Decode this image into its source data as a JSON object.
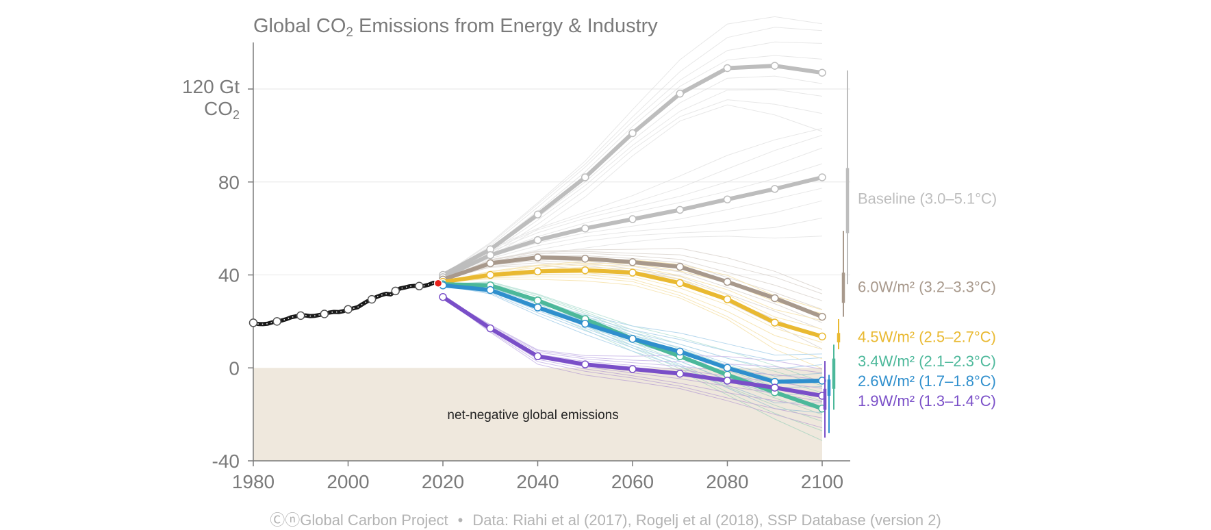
{
  "title": {
    "prefix": "Global CO",
    "subscript": "2",
    "suffix": " Emissions from Energy & Industry"
  },
  "y_unit": {
    "line1": "120 Gt",
    "line2_prefix": "CO",
    "line2_sub": "2"
  },
  "shaded_region_label": "net-negative global emissions",
  "footer": {
    "credit": "ⒸⓝGlobal Carbon Project",
    "separator": "•",
    "source": "Data: Riahi et al (2017), Rogelj et al (2018), SSP Database (version 2)"
  },
  "colors": {
    "baseline": "#bdbdbd",
    "ssp60": "#a8998c",
    "ssp45": "#e9b931",
    "ssp34": "#4cb89a",
    "ssp26": "#2f8fcd",
    "ssp19": "#7a4fc8",
    "historical": "#1a1a1a",
    "current_point": "#e8201a",
    "negative_fill": "#efe8dd",
    "axis": "#7a7a7a",
    "grid": "#e6e6e6"
  },
  "chart_data": {
    "type": "line",
    "xlabel": "",
    "ylabel": "",
    "xlim": [
      1980,
      2106
    ],
    "ylim": [
      -40,
      140
    ],
    "xticks": [
      1980,
      2000,
      2020,
      2040,
      2060,
      2080,
      2100
    ],
    "yticks": [
      -40,
      0,
      40,
      80
    ],
    "ytick_labels": [
      "-40",
      "0",
      "40",
      "80"
    ],
    "grid": "horizontal",
    "shaded_region": {
      "from": -40,
      "to": 0,
      "label": "net-negative global emissions"
    },
    "historical": {
      "x": [
        1980,
        1981,
        1982,
        1983,
        1984,
        1985,
        1986,
        1987,
        1988,
        1989,
        1990,
        1991,
        1992,
        1993,
        1994,
        1995,
        1996,
        1997,
        1998,
        1999,
        2000,
        2001,
        2002,
        2003,
        2004,
        2005,
        2006,
        2007,
        2008,
        2009,
        2010,
        2011,
        2012,
        2013,
        2014,
        2015,
        2016,
        2017,
        2018,
        2019
      ],
      "y": [
        19.4,
        18.9,
        18.8,
        19.0,
        19.6,
        20.0,
        20.4,
        21.0,
        21.8,
        22.2,
        22.5,
        22.6,
        22.3,
        22.4,
        22.8,
        23.2,
        23.8,
        24.1,
        24.0,
        24.4,
        25.2,
        25.6,
        26.1,
        27.4,
        28.6,
        29.5,
        30.5,
        31.3,
        31.9,
        31.6,
        33.1,
        34.2,
        34.6,
        35.1,
        35.3,
        35.2,
        35.3,
        35.8,
        36.6,
        36.4
      ],
      "markers_x": [
        1980,
        1985,
        1990,
        1995,
        2000,
        2005,
        2010,
        2015
      ],
      "current_point": {
        "x": 2019,
        "y": 36.4
      }
    },
    "series": [
      {
        "key": "baseline_high",
        "label": "",
        "color": "baseline",
        "x": [
          2020,
          2030,
          2040,
          2050,
          2060,
          2070,
          2080,
          2090,
          2100
        ],
        "y": [
          40,
          51,
          66,
          82,
          101,
          118,
          129,
          130,
          127
        ]
      },
      {
        "key": "baseline_low",
        "label": "Baseline (3.0–5.1°C)",
        "color": "baseline",
        "x": [
          2020,
          2030,
          2040,
          2050,
          2060,
          2070,
          2080,
          2090,
          2100
        ],
        "y": [
          39,
          48.5,
          55,
          60,
          64,
          68,
          72.5,
          77,
          82
        ]
      },
      {
        "key": "ssp60",
        "label": "6.0W/m² (3.2–3.3°C)",
        "color": "ssp60",
        "x": [
          2020,
          2030,
          2040,
          2050,
          2060,
          2070,
          2080,
          2090,
          2100
        ],
        "y": [
          38,
          45,
          47.5,
          47,
          45.5,
          43.5,
          37,
          30,
          22
        ]
      },
      {
        "key": "ssp45",
        "label": "4.5W/m² (2.5–2.7°C)",
        "color": "ssp45",
        "x": [
          2020,
          2030,
          2040,
          2050,
          2060,
          2070,
          2080,
          2090,
          2100
        ],
        "y": [
          37,
          40,
          41.5,
          42,
          41,
          36.5,
          29.5,
          19.5,
          13.5
        ]
      },
      {
        "key": "ssp34",
        "label": "3.4W/m² (2.1–2.3°C)",
        "color": "ssp34",
        "x": [
          2020,
          2030,
          2040,
          2050,
          2060,
          2070,
          2080,
          2090,
          2100
        ],
        "y": [
          36,
          35.5,
          29,
          21,
          12.5,
          5,
          -3,
          -10.5,
          -17.5
        ]
      },
      {
        "key": "ssp26",
        "label": "2.6W/m² (1.7–1.8°C)",
        "color": "ssp26",
        "x": [
          2020,
          2030,
          2040,
          2050,
          2060,
          2070,
          2080,
          2090,
          2100
        ],
        "y": [
          35.5,
          33.5,
          26,
          19,
          12.5,
          7,
          0,
          -6,
          -5.5
        ]
      },
      {
        "key": "ssp19",
        "label": "1.9W/m² (1.3–1.4°C)",
        "color": "ssp19",
        "x": [
          2020,
          2030,
          2040,
          2050,
          2060,
          2070,
          2080,
          2090,
          2100
        ],
        "y": [
          30.5,
          17,
          5,
          1.5,
          -0.5,
          -2.5,
          -5.5,
          -8.5,
          -12
        ]
      }
    ],
    "ranges_2100": [
      {
        "color": "baseline",
        "min": 36,
        "max": 128,
        "p25": 58,
        "p75": 86
      },
      {
        "color": "ssp60",
        "min": 22,
        "max": 59,
        "p25": 28,
        "p75": 41
      },
      {
        "color": "ssp45",
        "min": 8,
        "max": 21,
        "p25": 11,
        "p75": 15
      },
      {
        "color": "ssp34",
        "min": -18,
        "max": 10,
        "p25": -9,
        "p75": 4
      },
      {
        "color": "ssp26",
        "min": -28,
        "max": -3,
        "p25": -12,
        "p75": -5
      },
      {
        "color": "ssp19",
        "min": -30,
        "max": 3,
        "p25": -18,
        "p75": -9
      }
    ]
  }
}
